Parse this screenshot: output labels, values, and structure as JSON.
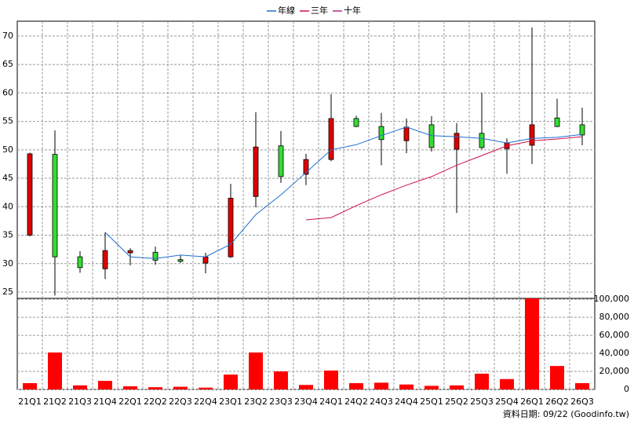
{
  "chart_data": {
    "type": "candlestick",
    "categories": [
      "21Q1",
      "21Q2",
      "21Q3",
      "21Q4",
      "22Q1",
      "22Q2",
      "22Q3",
      "22Q4",
      "23Q1",
      "23Q2",
      "23Q3",
      "23Q4",
      "24Q1",
      "24Q2",
      "24Q3",
      "24Q4",
      "25Q1",
      "25Q2",
      "25Q3",
      "25Q4",
      "26Q1",
      "26Q2",
      "26Q3"
    ],
    "open": [
      35,
      49.2,
      31.2,
      29.1,
      31.9,
      32,
      30.7,
      30.1,
      31.2,
      41.8,
      50.7,
      45.7,
      48.3,
      55.5,
      54.1,
      51.6,
      54.4,
      50.1,
      52.9,
      50.2,
      50.8,
      55.6,
      54.4
    ],
    "high": [
      49.5,
      53.4,
      32.2,
      35.5,
      32.7,
      33,
      31.5,
      31.9,
      44,
      56.6,
      53.3,
      49.3,
      59.8,
      56,
      56.5,
      55.5,
      55.9,
      54.7,
      60,
      52,
      71.5,
      59,
      57.4
    ],
    "low": [
      34.8,
      24.4,
      28.4,
      27.3,
      29.7,
      29.8,
      30.1,
      28.3,
      31,
      39.9,
      44.2,
      43.8,
      48,
      54,
      47.3,
      49.4,
      49.7,
      38.9,
      50.1,
      45.8,
      47.5,
      54,
      50.8
    ],
    "close": [
      49.3,
      31.2,
      29.3,
      32.3,
      32.3,
      30.6,
      30.4,
      31.2,
      41.5,
      50.5,
      45.3,
      48.3,
      55.5,
      54.1,
      51.8,
      54,
      50.4,
      52.9,
      50.4,
      51.2,
      54.4,
      54.1,
      52.6
    ],
    "up_color": "#e00000",
    "down_color": "#33dd33",
    "series": [
      {
        "name": "年線",
        "color": "#1f6fd0",
        "values": [
          null,
          null,
          null,
          35.5,
          31.2,
          30.9,
          31.5,
          31.2,
          33.4,
          38.6,
          42.1,
          46,
          50,
          50.9,
          52.5,
          54,
          52.5,
          52.3,
          52,
          51.2,
          52,
          52.2,
          52.7
        ]
      },
      {
        "name": "三年",
        "color": "#d0104c",
        "values": [
          null,
          null,
          null,
          null,
          null,
          null,
          null,
          null,
          null,
          null,
          null,
          37.7,
          38.1,
          40.2,
          42.1,
          43.8,
          45.3,
          47.3,
          49,
          50.7,
          51.6,
          51.9,
          52.3
        ]
      },
      {
        "name": "十年",
        "color": "#b0308a",
        "values": [
          null,
          null,
          null,
          null,
          null,
          null,
          null,
          null,
          null,
          null,
          null,
          null,
          null,
          null,
          null,
          null,
          null,
          null,
          null,
          null,
          null,
          null,
          null
        ]
      }
    ],
    "ylim": [
      23.9,
      72.6
    ],
    "yticks": [
      25,
      30,
      35,
      40,
      45,
      50,
      55,
      60,
      65,
      70
    ],
    "volume": {
      "color": "#ff0000",
      "values": [
        7000,
        41000,
        4500,
        9500,
        3500,
        2500,
        3000,
        2000,
        16500,
        41000,
        20000,
        5000,
        21000,
        7000,
        7500,
        5500,
        4000,
        4500,
        17500,
        11500,
        101000,
        26000,
        7000
      ]
    },
    "y2lim": [
      0,
      101000
    ],
    "y2ticks": [
      0,
      {
        "value": 20000,
        "label": "20,000"
      },
      {
        "value": 40000,
        "label": "40,000"
      },
      {
        "value": 60000,
        "label": "60,000"
      },
      {
        "value": 80000,
        "label": "80,000"
      },
      {
        "value": 100000,
        "label": "100,000"
      }
    ],
    "grid": true,
    "footer": "資料日期: 09/22  (Goodinfo.tw)"
  }
}
